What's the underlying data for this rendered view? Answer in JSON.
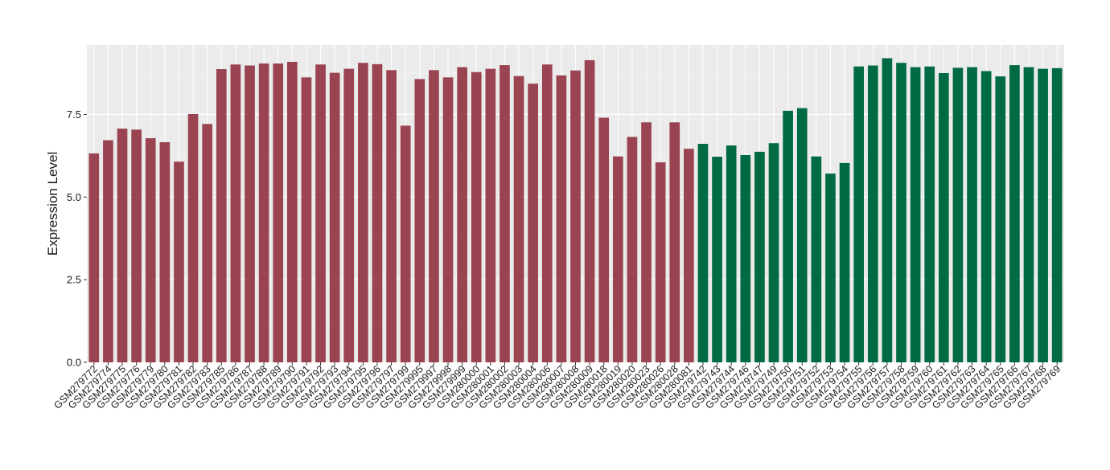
{
  "chart_data": {
    "type": "bar",
    "title": "",
    "xlabel": "",
    "ylabel": "Expression Level",
    "ylim": [
      0,
      9.6
    ],
    "yticks": [
      0.0,
      2.5,
      5.0,
      7.5
    ],
    "ytick_labels": [
      "0.0",
      "2.5",
      "5.0",
      "7.5"
    ],
    "grid": true,
    "legend": "none",
    "colors": {
      "panel_background": "#ebebeb",
      "grid_major": "#ffffff",
      "grid_minor": "#f5f5f5",
      "group_red": "#9a4351",
      "group_green": "#006a43"
    },
    "categories": [
      "GSM279772",
      "GSM279774",
      "GSM279775",
      "GSM279776",
      "GSM279779",
      "GSM279780",
      "GSM279781",
      "GSM279782",
      "GSM279783",
      "GSM279785",
      "GSM279786",
      "GSM279787",
      "GSM279788",
      "GSM279789",
      "GSM279790",
      "GSM279791",
      "GSM279792",
      "GSM279793",
      "GSM279794",
      "GSM279795",
      "GSM279796",
      "GSM279797",
      "GSM279799",
      "GSM279995",
      "GSM279997",
      "GSM279998",
      "GSM279999",
      "GSM280000",
      "GSM280001",
      "GSM280002",
      "GSM280003",
      "GSM280004",
      "GSM280006",
      "GSM280007",
      "GSM280008",
      "GSM280009",
      "GSM280018",
      "GSM280019",
      "GSM280020",
      "GSM280023",
      "GSM280026",
      "GSM280028",
      "GSM280081",
      "GSM279742",
      "GSM279743",
      "GSM279744",
      "GSM279746",
      "GSM279747",
      "GSM279749",
      "GSM279750",
      "GSM279751",
      "GSM279752",
      "GSM279753",
      "GSM279754",
      "GSM279755",
      "GSM279756",
      "GSM279757",
      "GSM279758",
      "GSM279759",
      "GSM279760",
      "GSM279761",
      "GSM279762",
      "GSM279763",
      "GSM279764",
      "GSM279765",
      "GSM279766",
      "GSM279767",
      "GSM279768",
      "GSM279769"
    ],
    "values": [
      6.32,
      6.72,
      7.07,
      7.04,
      6.78,
      6.66,
      6.07,
      7.51,
      7.21,
      8.87,
      9.01,
      8.98,
      9.04,
      9.04,
      9.09,
      8.62,
      9.01,
      8.76,
      8.88,
      9.06,
      9.02,
      8.84,
      7.16,
      8.57,
      8.84,
      8.62,
      8.93,
      8.78,
      8.88,
      8.99,
      8.66,
      8.43,
      9.01,
      8.68,
      8.83,
      9.14,
      7.4,
      6.23,
      6.82,
      7.26,
      6.05,
      7.26,
      6.46,
      6.61,
      6.22,
      6.56,
      6.27,
      6.37,
      6.63,
      7.61,
      7.69,
      6.23,
      5.71,
      6.03,
      8.95,
      8.98,
      9.2,
      9.06,
      8.93,
      8.95,
      8.75,
      8.91,
      8.93,
      8.81,
      8.65,
      8.99,
      8.93,
      8.88,
      8.9
    ],
    "bar_colors": [
      "#9a4351",
      "#9a4351",
      "#9a4351",
      "#9a4351",
      "#9a4351",
      "#9a4351",
      "#9a4351",
      "#9a4351",
      "#9a4351",
      "#9a4351",
      "#9a4351",
      "#9a4351",
      "#9a4351",
      "#9a4351",
      "#9a4351",
      "#9a4351",
      "#9a4351",
      "#9a4351",
      "#9a4351",
      "#9a4351",
      "#9a4351",
      "#9a4351",
      "#9a4351",
      "#9a4351",
      "#9a4351",
      "#9a4351",
      "#9a4351",
      "#9a4351",
      "#9a4351",
      "#9a4351",
      "#9a4351",
      "#9a4351",
      "#9a4351",
      "#9a4351",
      "#9a4351",
      "#9a4351",
      "#9a4351",
      "#9a4351",
      "#9a4351",
      "#9a4351",
      "#9a4351",
      "#9a4351",
      "#9a4351",
      "#006a43",
      "#006a43",
      "#006a43",
      "#006a43",
      "#006a43",
      "#006a43",
      "#006a43",
      "#006a43",
      "#006a43",
      "#006a43",
      "#006a43",
      "#006a43",
      "#006a43",
      "#006a43",
      "#006a43",
      "#006a43",
      "#006a43",
      "#006a43",
      "#006a43",
      "#006a43",
      "#006a43",
      "#006a43",
      "#006a43",
      "#006a43",
      "#006a43",
      "#006a43"
    ]
  }
}
